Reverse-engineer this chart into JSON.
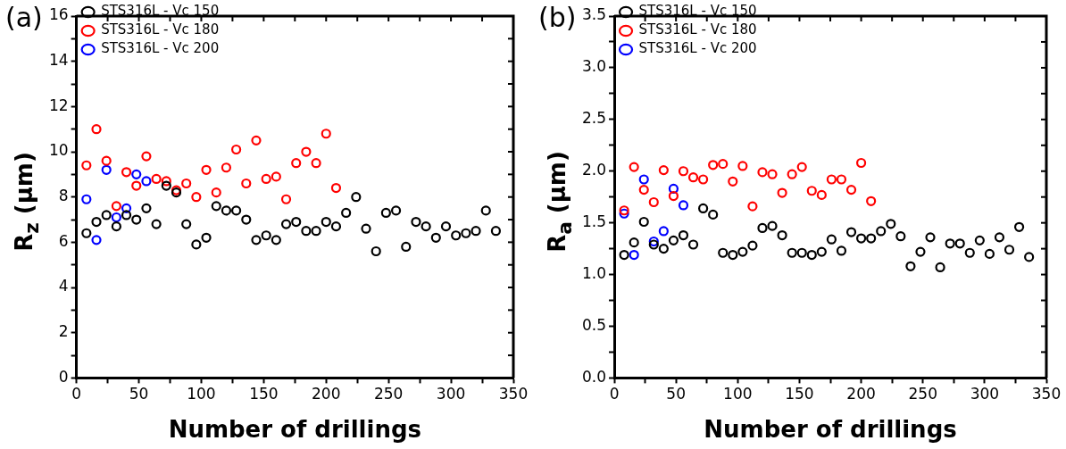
{
  "chart_data": [
    {
      "type": "scatter",
      "title": "(a)",
      "xlabel": "Number of drillings",
      "ylabel": "R$_{z}$ (μm)",
      "xlim": [
        0,
        350
      ],
      "xticks": [
        0,
        {
          "value": 25,
          "label": null
        },
        50,
        {
          "value": 75,
          "label": null
        },
        100,
        {
          "value": 125,
          "label": null
        },
        150,
        {
          "value": 175,
          "label": null
        },
        200,
        {
          "value": 225,
          "label": null
        },
        250,
        {
          "value": 275,
          "label": null
        },
        300,
        {
          "value": 325,
          "label": null
        },
        350
      ],
      "ylim": [
        0,
        16
      ],
      "yticks": [
        0,
        {
          "value": 1,
          "label": null
        },
        2,
        {
          "value": 3,
          "label": null
        },
        4,
        {
          "value": 5,
          "label": null
        },
        6,
        {
          "value": 7,
          "label": null
        },
        8,
        {
          "value": 9,
          "label": null
        },
        10,
        {
          "value": 11,
          "label": null
        },
        12,
        {
          "value": 13,
          "label": null
        },
        14,
        {
          "value": 15,
          "label": null
        },
        16
      ],
      "grid": false,
      "legend": "top left",
      "marker": "circle",
      "series": [
        {
          "name": "STS316L - Vc 150",
          "color": "#000000",
          "x": [
            8,
            16,
            24,
            32,
            40,
            48,
            56,
            64,
            72,
            80,
            88,
            96,
            104,
            112,
            120,
            128,
            136,
            144,
            152,
            160,
            168,
            176,
            184,
            192,
            200,
            208,
            216,
            224,
            232,
            240,
            248,
            256,
            264,
            272,
            280,
            288,
            296,
            304,
            312,
            320,
            328,
            336
          ],
          "values": [
            6.4,
            6.9,
            7.2,
            6.7,
            7.2,
            7.0,
            7.5,
            6.8,
            8.5,
            8.2,
            6.8,
            5.9,
            6.2,
            7.6,
            7.4,
            7.4,
            7.0,
            6.1,
            6.3,
            6.1,
            6.8,
            6.9,
            6.5,
            6.5,
            6.9,
            6.7,
            7.3,
            8.0,
            6.6,
            5.6,
            7.3,
            7.4,
            5.8,
            6.9,
            6.7,
            6.2,
            6.7,
            6.3,
            6.4,
            6.5,
            7.4,
            6.5
          ]
        },
        {
          "name": "STS316L - Vc 180",
          "color": "#ff0000",
          "x": [
            8,
            16,
            24,
            32,
            40,
            48,
            56,
            64,
            72,
            80,
            88,
            96,
            104,
            112,
            120,
            128,
            136,
            144,
            152,
            160,
            168,
            176,
            184,
            192,
            200,
            208
          ],
          "values": [
            9.4,
            11.0,
            9.6,
            7.6,
            9.1,
            8.5,
            9.8,
            8.8,
            8.7,
            8.3,
            8.6,
            8.0,
            9.2,
            8.2,
            9.3,
            10.1,
            8.6,
            10.5,
            8.8,
            8.9,
            7.9,
            9.5,
            10.0,
            9.5,
            10.8,
            8.4
          ]
        },
        {
          "name": "STS316L - Vc 200",
          "color": "#0000ff",
          "x": [
            8,
            16,
            24,
            32,
            40,
            48,
            56
          ],
          "values": [
            7.9,
            6.1,
            9.2,
            7.1,
            7.5,
            9.0,
            8.7
          ]
        }
      ]
    },
    {
      "type": "scatter",
      "title": "(b)",
      "xlabel": "Number of drillings",
      "ylabel": "R$_{a}$ (μm)",
      "xlim": [
        0,
        350
      ],
      "xticks": [
        0,
        {
          "value": 25,
          "label": null
        },
        50,
        {
          "value": 75,
          "label": null
        },
        100,
        {
          "value": 125,
          "label": null
        },
        150,
        {
          "value": 175,
          "label": null
        },
        200,
        {
          "value": 225,
          "label": null
        },
        250,
        {
          "value": 275,
          "label": null
        },
        300,
        {
          "value": 325,
          "label": null
        },
        350
      ],
      "ylim": [
        0,
        3.5
      ],
      "yticks": [
        {
          "value": 0,
          "label": "0.0"
        },
        {
          "value": 0.25,
          "label": null
        },
        0.5,
        {
          "value": 0.75,
          "label": null
        },
        {
          "value": 1,
          "label": "1.0"
        },
        {
          "value": 1.25,
          "label": null
        },
        1.5,
        {
          "value": 1.75,
          "label": null
        },
        {
          "value": 2,
          "label": "2.0"
        },
        {
          "value": 2.25,
          "label": null
        },
        2.5,
        {
          "value": 2.75,
          "label": null
        },
        {
          "value": 3,
          "label": "3.0"
        },
        {
          "value": 3.25,
          "label": null
        },
        3.5
      ],
      "grid": false,
      "legend": "top left",
      "marker": "circle",
      "series": [
        {
          "name": "STS316L - Vc 150",
          "color": "#000000",
          "x": [
            8,
            16,
            24,
            32,
            40,
            48,
            56,
            64,
            72,
            80,
            88,
            96,
            104,
            112,
            120,
            128,
            136,
            144,
            152,
            160,
            168,
            176,
            184,
            192,
            200,
            208,
            216,
            224,
            232,
            240,
            248,
            256,
            264,
            272,
            280,
            288,
            296,
            304,
            312,
            320,
            328,
            336
          ],
          "values": [
            1.19,
            1.31,
            1.51,
            1.29,
            1.25,
            1.33,
            1.38,
            1.29,
            1.64,
            1.58,
            1.21,
            1.19,
            1.22,
            1.28,
            1.45,
            1.47,
            1.38,
            1.21,
            1.21,
            1.19,
            1.22,
            1.34,
            1.23,
            1.41,
            1.35,
            1.35,
            1.42,
            1.49,
            1.37,
            1.08,
            1.22,
            1.36,
            1.07,
            1.3,
            1.3,
            1.21,
            1.33,
            1.2,
            1.36,
            1.24,
            1.46,
            1.17
          ]
        },
        {
          "name": "STS316L - Vc 180",
          "color": "#ff0000",
          "x": [
            8,
            16,
            24,
            32,
            40,
            48,
            56,
            64,
            72,
            80,
            88,
            96,
            104,
            112,
            120,
            128,
            136,
            144,
            152,
            160,
            168,
            176,
            184,
            192,
            200,
            208
          ],
          "values": [
            1.62,
            2.04,
            1.82,
            1.7,
            2.01,
            1.76,
            2.0,
            1.94,
            1.92,
            2.06,
            2.07,
            1.9,
            2.05,
            1.66,
            1.99,
            1.97,
            1.79,
            1.97,
            2.04,
            1.81,
            1.77,
            1.92,
            1.92,
            1.82,
            2.08,
            1.71
          ]
        },
        {
          "name": "STS316L - Vc 200",
          "color": "#0000ff",
          "x": [
            8,
            16,
            24,
            32,
            40,
            48,
            56
          ],
          "values": [
            1.59,
            1.19,
            1.92,
            1.32,
            1.42,
            1.83,
            1.67
          ]
        }
      ]
    }
  ]
}
